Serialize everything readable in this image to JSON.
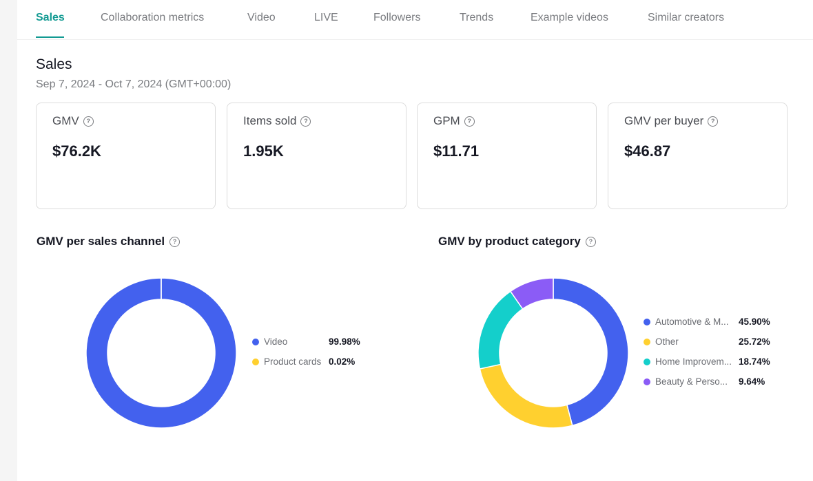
{
  "tabs": [
    {
      "label": "Sales",
      "active": true
    },
    {
      "label": "Collaboration metrics"
    },
    {
      "label": "Video"
    },
    {
      "label": "LIVE"
    },
    {
      "label": "Followers"
    },
    {
      "label": "Trends"
    },
    {
      "label": "Example videos"
    },
    {
      "label": "Similar creators"
    }
  ],
  "section": {
    "title": "Sales",
    "date_range": "Sep 7, 2024 - Oct 7, 2024 (GMT+00:00)"
  },
  "metrics": [
    {
      "label": "GMV",
      "value": "$76.2K"
    },
    {
      "label": "Items sold",
      "value": "1.95K"
    },
    {
      "label": "GPM",
      "value": "$11.71"
    },
    {
      "label": "GMV per buyer",
      "value": "$46.87"
    }
  ],
  "help_glyph": "?",
  "chart_data": [
    {
      "type": "pie",
      "title": "GMV per sales channel",
      "donut": true,
      "series": [
        {
          "name": "Video",
          "value": 99.98,
          "label": "99.98%",
          "color": "#4361ee"
        },
        {
          "name": "Product cards",
          "value": 0.02,
          "label": "0.02%",
          "color": "#ffd02f"
        }
      ]
    },
    {
      "type": "pie",
      "title": "GMV by product category",
      "donut": true,
      "series": [
        {
          "name": "Automotive & M...",
          "value": 45.9,
          "label": "45.90%",
          "color": "#4361ee"
        },
        {
          "name": "Other",
          "value": 25.72,
          "label": "25.72%",
          "color": "#ffd02f"
        },
        {
          "name": "Home Improvem...",
          "value": 18.74,
          "label": "18.74%",
          "color": "#14cfcb"
        },
        {
          "name": "Beauty & Perso...",
          "value": 9.64,
          "label": "9.64%",
          "color": "#8b5cf6"
        }
      ]
    }
  ]
}
